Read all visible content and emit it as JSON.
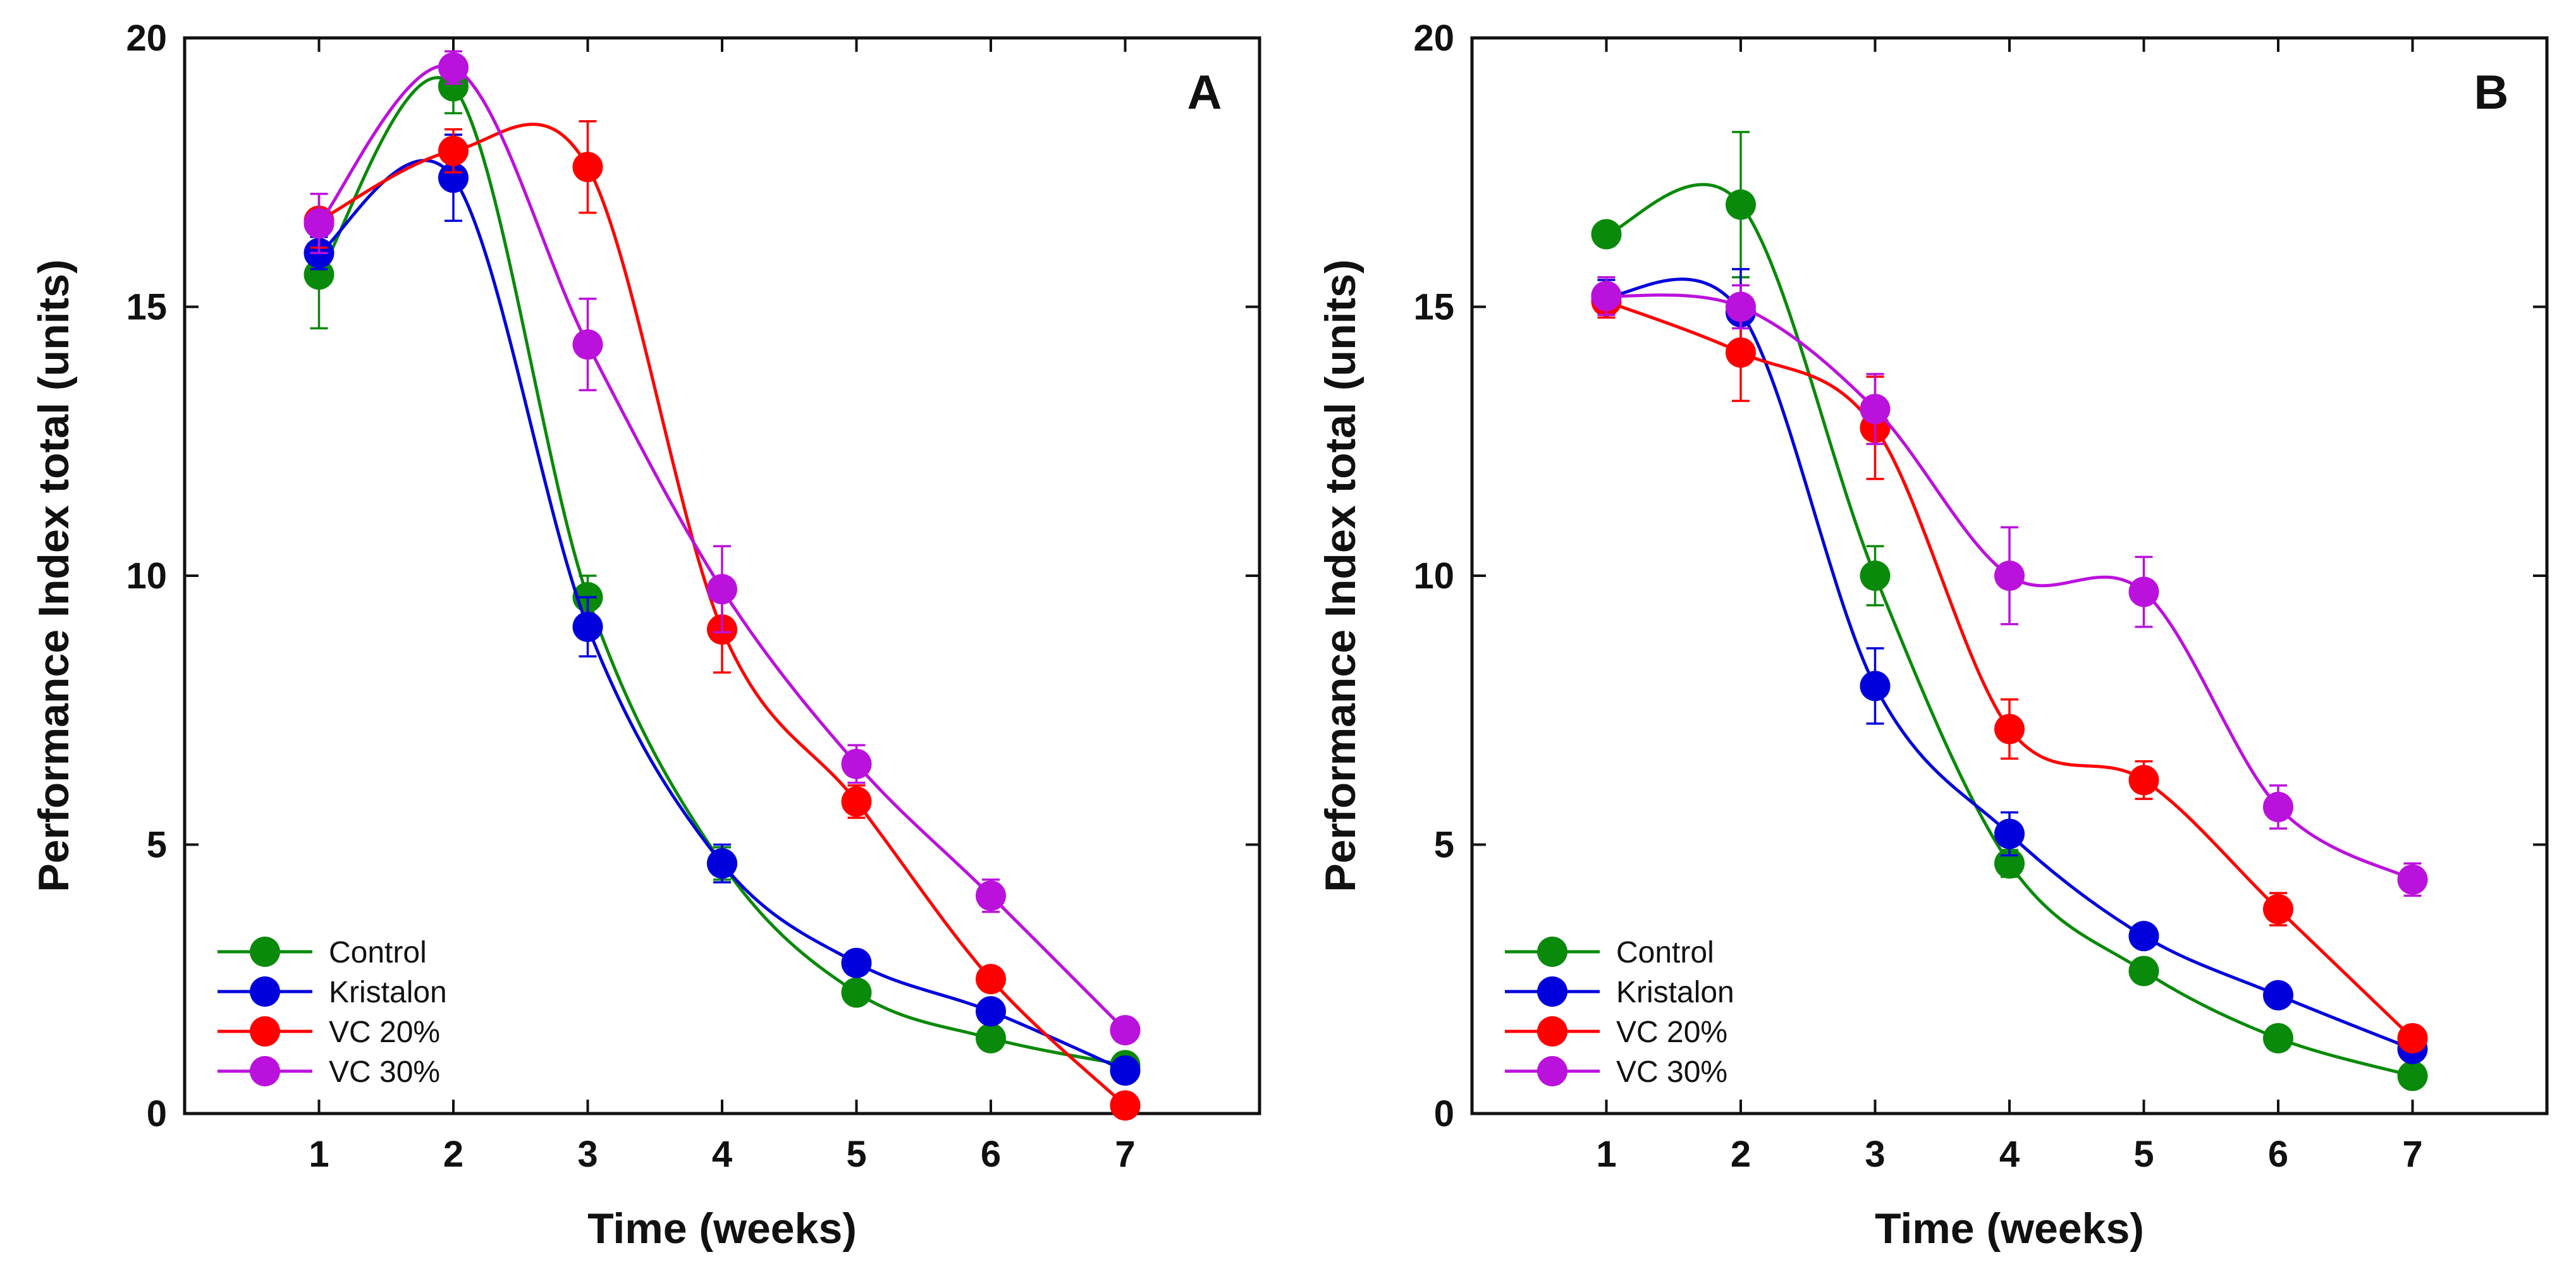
{
  "chart_data": [
    {
      "type": "line",
      "title": "",
      "panel_label": "A",
      "xlabel": "Time (weeks)",
      "ylabel": "Performance Index total (units)",
      "xlim": [
        0,
        8
      ],
      "ylim": [
        0,
        20
      ],
      "x": [
        1,
        2,
        3,
        4,
        5,
        6,
        7
      ],
      "xticks": [
        "1",
        "2",
        "3",
        "4",
        "5",
        "6",
        "7"
      ],
      "yticks": [
        "0",
        "5",
        "10",
        "15",
        "20"
      ],
      "legend_position": "bottom-left",
      "series": [
        {
          "name": "Control",
          "color": "#0a8a0a",
          "values": [
            15.6,
            19.1,
            9.6,
            4.65,
            2.25,
            1.4,
            0.9
          ],
          "errors": [
            1.0,
            0.5,
            0.4,
            0.3,
            0.2,
            0.15,
            0.15
          ]
        },
        {
          "name": "Kristalon",
          "color": "#0000dd",
          "values": [
            16.0,
            17.4,
            9.05,
            4.65,
            2.8,
            1.9,
            0.8
          ],
          "errors": [
            0.3,
            0.8,
            0.55,
            0.35,
            0.2,
            0.2,
            0.15
          ]
        },
        {
          "name": "VC 20%",
          "color": "#ff0000",
          "values": [
            16.6,
            17.9,
            17.6,
            9.0,
            5.8,
            2.5,
            0.15
          ],
          "errors": [
            0.5,
            0.4,
            0.85,
            0.8,
            0.3,
            0.2,
            0.1
          ]
        },
        {
          "name": "VC 30%",
          "color": "#bb11dd",
          "values": [
            16.55,
            19.45,
            14.3,
            9.75,
            6.5,
            4.05,
            1.55
          ],
          "errors": [
            0.55,
            0.3,
            0.85,
            0.8,
            0.35,
            0.3,
            0.15
          ]
        }
      ]
    },
    {
      "type": "line",
      "title": "",
      "panel_label": "B",
      "xlabel": "Time (weeks)",
      "ylabel": "Performance Index total (units)",
      "xlim": [
        0,
        8
      ],
      "ylim": [
        0,
        20
      ],
      "x": [
        1,
        2,
        3,
        4,
        5,
        6,
        7
      ],
      "xticks": [
        "1",
        "2",
        "3",
        "4",
        "5",
        "6",
        "7"
      ],
      "yticks": [
        "0",
        "5",
        "10",
        "15",
        "20"
      ],
      "legend_position": "bottom-left",
      "series": [
        {
          "name": "Control",
          "color": "#0a8a0a",
          "values": [
            16.35,
            16.9,
            10.0,
            4.65,
            2.65,
            1.4,
            0.7
          ],
          "errors": [
            0.2,
            1.35,
            0.55,
            0.25,
            0.15,
            0.15,
            0.1
          ]
        },
        {
          "name": "Kristalon",
          "color": "#0000dd",
          "values": [
            15.2,
            14.9,
            7.95,
            5.2,
            3.3,
            2.2,
            1.2
          ],
          "errors": [
            0.3,
            0.8,
            0.7,
            0.4,
            0.2,
            0.15,
            0.15
          ]
        },
        {
          "name": "VC 20%",
          "color": "#ff0000",
          "values": [
            15.1,
            14.15,
            12.75,
            7.15,
            6.2,
            3.8,
            1.4
          ],
          "errors": [
            0.3,
            0.9,
            0.95,
            0.55,
            0.35,
            0.3,
            0.15
          ]
        },
        {
          "name": "VC 30%",
          "color": "#bb11dd",
          "values": [
            15.2,
            15.0,
            13.1,
            10.0,
            9.7,
            5.7,
            4.35
          ],
          "errors": [
            0.35,
            0.4,
            0.65,
            0.9,
            0.65,
            0.4,
            0.3
          ]
        }
      ]
    }
  ]
}
